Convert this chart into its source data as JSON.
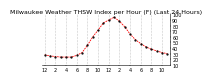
{
  "title": "Milwaukee Weather THSW Index per Hour (F) (Last 24 Hours)",
  "hours": [
    0,
    1,
    2,
    3,
    4,
    5,
    6,
    7,
    8,
    9,
    10,
    11,
    12,
    13,
    14,
    15,
    16,
    17,
    18,
    19,
    20,
    21,
    22,
    23
  ],
  "values": [
    28,
    26,
    25,
    24,
    24,
    24,
    27,
    32,
    45,
    60,
    72,
    85,
    90,
    95,
    88,
    78,
    65,
    55,
    48,
    42,
    38,
    35,
    32,
    30
  ],
  "ylim": [
    10,
    100
  ],
  "yticks": [
    10,
    20,
    30,
    40,
    50,
    60,
    70,
    80,
    90,
    100
  ],
  "ytick_labels": [
    "10",
    "20",
    "30",
    "40",
    "50",
    "60",
    "70",
    "80",
    "90",
    "100"
  ],
  "xticks": [
    0,
    2,
    4,
    6,
    8,
    10,
    12,
    14,
    16,
    18,
    20,
    22
  ],
  "xtick_labels": [
    "12",
    "2",
    "4",
    "6",
    "8",
    "10",
    "12",
    "2",
    "4",
    "6",
    "8",
    "10"
  ],
  "line_color": "#ff0000",
  "marker_color": "#000000",
  "background_color": "#ffffff",
  "grid_color": "#999999",
  "title_fontsize": 4.5,
  "tick_fontsize": 3.5
}
